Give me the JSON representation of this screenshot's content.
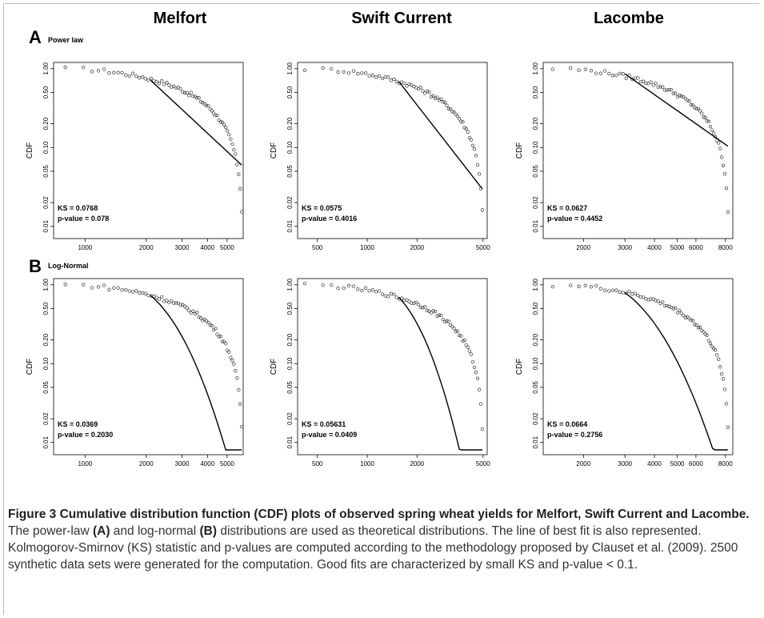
{
  "figure": {
    "columns": [
      "Melfort",
      "Swift Current",
      "Lacombe"
    ],
    "rows": [
      {
        "letter": "A",
        "label": "Power law"
      },
      {
        "letter": "B",
        "label": "Log-Normal"
      }
    ]
  },
  "caption": {
    "bold": "Figure 3 Cumulative distribution function (CDF) plots of observed spring wheat yields for Melfort, Swift Current and Lacombe.",
    "part1": " The power-law ",
    "refA": "(A)",
    "part2": " and log-normal ",
    "refB": "(B)",
    "part3": " distributions are used as theoretical distributions. The line of best fit is also represented. Kolmogorov-Smirnov (KS) statistic and p-values are computed according to the methodology proposed by Clauset et al. (2009). 2500 synthetic data sets were generated for the computation. Good fits are characterized by small KS and p-value < 0.1."
  },
  "colors": {
    "points": "#333333",
    "line": "#000000",
    "axis": "#000000"
  },
  "chart_data": [
    {
      "type": "scatter",
      "id": "A-melfort",
      "site": "Melfort",
      "distribution": "Power law",
      "ylabel": "CDF",
      "xscale": "log",
      "yscale": "log",
      "xlim": [
        700,
        6000
      ],
      "ylim": [
        0.007,
        1.2
      ],
      "xticks": [
        1000,
        2000,
        3000,
        4000,
        5000
      ],
      "yticks": [
        1.0,
        0.5,
        0.2,
        0.1,
        0.05,
        0.02,
        0.01
      ],
      "xtick_labels": [
        "1000",
        "2000",
        "3000",
        "4000",
        "5000"
      ],
      "ytick_labels": [
        "1.00",
        "0.50",
        "0.20",
        "0.10",
        "0.05",
        "0.02",
        "0.01"
      ],
      "xmin": 800,
      "xmax": 5900,
      "fit": "power",
      "alpha": 3.4,
      "fit_start": 2100,
      "fit_end": 5900,
      "ks": "KS = 0.0768",
      "pvalue": "p-value = 0.078"
    },
    {
      "type": "scatter",
      "id": "A-swift",
      "site": "Swift Current",
      "distribution": "Power law",
      "ylabel": "CDF",
      "xscale": "log",
      "yscale": "log",
      "xlim": [
        380,
        5300
      ],
      "ylim": [
        0.007,
        1.2
      ],
      "xticks": [
        500,
        1000,
        2000,
        5000
      ],
      "yticks": [
        1.0,
        0.5,
        0.2,
        0.1,
        0.05,
        0.02,
        0.01
      ],
      "xtick_labels": [
        "500",
        "1000",
        "2000",
        "5000"
      ],
      "ytick_labels": [
        "1.00",
        "0.50",
        "0.20",
        "0.10",
        "0.05",
        "0.02",
        "0.01"
      ],
      "xmin": 420,
      "xmax": 4950,
      "fit": "power",
      "alpha": 3.7,
      "fit_start": 1550,
      "fit_end": 4950,
      "ks": "KS = 0.0575",
      "pvalue": "p-value = 0.4016"
    },
    {
      "type": "scatter",
      "id": "A-lacombe",
      "site": "Lacombe",
      "distribution": "Power law",
      "ylabel": "CDF",
      "xscale": "log",
      "yscale": "log",
      "xlim": [
        1350,
        8600
      ],
      "ylim": [
        0.007,
        1.2
      ],
      "xticks": [
        2000,
        3000,
        4000,
        5000,
        6000,
        8000
      ],
      "yticks": [
        1.0,
        0.5,
        0.2,
        0.1,
        0.05,
        0.02,
        0.01
      ],
      "xtick_labels": [
        "2000",
        "3000",
        "4000",
        "5000",
        "6000",
        "8000"
      ],
      "ytick_labels": [
        "1.00",
        "0.50",
        "0.20",
        "0.10",
        "0.05",
        "0.02",
        "0.01"
      ],
      "xmin": 1480,
      "xmax": 8200,
      "fit": "power",
      "alpha": 3.1,
      "fit_start": 3000,
      "fit_end": 8200,
      "ks": "KS = 0.0627",
      "pvalue": "p-value = 0.4452"
    },
    {
      "type": "scatter",
      "id": "B-melfort",
      "site": "Melfort",
      "distribution": "Log-Normal",
      "ylabel": "CDF",
      "xscale": "log",
      "yscale": "log",
      "xlim": [
        700,
        6000
      ],
      "ylim": [
        0.007,
        1.2
      ],
      "xticks": [
        1000,
        2000,
        3000,
        4000,
        5000
      ],
      "yticks": [
        1.0,
        0.5,
        0.2,
        0.1,
        0.05,
        0.02,
        0.01
      ],
      "xtick_labels": [
        "1000",
        "2000",
        "3000",
        "4000",
        "5000"
      ],
      "ytick_labels": [
        "1.00",
        "0.50",
        "0.20",
        "0.10",
        "0.05",
        "0.02",
        "0.01"
      ],
      "xmin": 800,
      "xmax": 5900,
      "fit": "lognormal",
      "fit_start": 2100,
      "fit_end": 5900,
      "ks": "KS = 0.0369",
      "pvalue": "p-value = 0.2030"
    },
    {
      "type": "scatter",
      "id": "B-swift",
      "site": "Swift Current",
      "distribution": "Log-Normal",
      "ylabel": "CDF",
      "xscale": "log",
      "yscale": "log",
      "xlim": [
        380,
        5300
      ],
      "ylim": [
        0.007,
        1.2
      ],
      "xticks": [
        500,
        1000,
        2000,
        5000
      ],
      "yticks": [
        1.0,
        0.5,
        0.2,
        0.1,
        0.05,
        0.02,
        0.01
      ],
      "xtick_labels": [
        "500",
        "1000",
        "2000",
        "5000"
      ],
      "ytick_labels": [
        "1.00",
        "0.50",
        "0.20",
        "0.10",
        "0.05",
        "0.02",
        "0.01"
      ],
      "xmin": 420,
      "xmax": 4950,
      "fit": "lognormal",
      "fit_start": 1550,
      "fit_end": 4950,
      "ks": "KS = 0.05631",
      "pvalue": "p-value = 0.0409"
    },
    {
      "type": "scatter",
      "id": "B-lacombe",
      "site": "Lacombe",
      "distribution": "Log-Normal",
      "ylabel": "CDF",
      "xscale": "log",
      "yscale": "log",
      "xlim": [
        1350,
        8600
      ],
      "ylim": [
        0.007,
        1.2
      ],
      "xticks": [
        2000,
        3000,
        4000,
        5000,
        6000,
        8000
      ],
      "yticks": [
        1.0,
        0.5,
        0.2,
        0.1,
        0.05,
        0.02,
        0.01
      ],
      "xtick_labels": [
        "2000",
        "3000",
        "4000",
        "5000",
        "6000",
        "8000"
      ],
      "ytick_labels": [
        "1.00",
        "0.50",
        "0.20",
        "0.10",
        "0.05",
        "0.02",
        "0.01"
      ],
      "xmin": 1480,
      "xmax": 8200,
      "fit": "lognormal",
      "fit_start": 3000,
      "fit_end": 8200,
      "ks": "KS = 0.0664",
      "pvalue": "p-value = 0.2756"
    }
  ]
}
